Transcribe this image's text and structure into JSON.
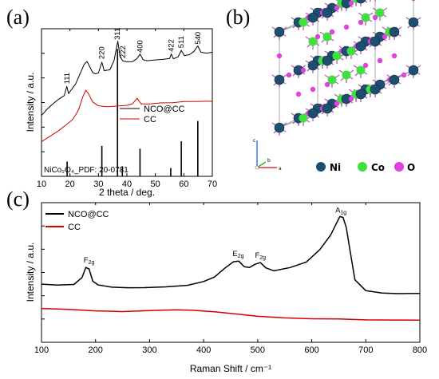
{
  "panel_letters": {
    "a": "(a)",
    "b": "(b)",
    "c": "(c)"
  },
  "colors": {
    "nco": "#000000",
    "cc": "#d40000",
    "ni": "#1f4f6e",
    "co": "#3fe03f",
    "o": "#e040e0",
    "bond": "#b060b0",
    "cell": "#888888"
  },
  "chart_data": [
    {
      "type": "line",
      "panel": "(a)",
      "xlabel": "2 theta / deg.",
      "ylabel": "Intensity / a.u.",
      "xlim": [
        10,
        70
      ],
      "xticks": [
        10,
        20,
        30,
        40,
        50,
        60,
        70
      ],
      "series": [
        {
          "name": "NCO@CC",
          "color": "#000000",
          "x": [
            10,
            12,
            14,
            16,
            18,
            18.9,
            19.5,
            20,
            22,
            24,
            25,
            26,
            27,
            28,
            29,
            30,
            31.2,
            32,
            34,
            35.5,
            36.8,
            37.6,
            38.6,
            40,
            42,
            43.5,
            44.6,
            45.7,
            47,
            50,
            53,
            55,
            55.6,
            56.3,
            58,
            59.1,
            60.2,
            62,
            63.5,
            64.9,
            66,
            68,
            70
          ],
          "y": [
            3.3,
            3.65,
            3.95,
            4.2,
            4.4,
            4.9,
            4.5,
            4.6,
            5.0,
            5.7,
            6.05,
            6.2,
            5.9,
            5.6,
            5.55,
            5.6,
            6.2,
            5.75,
            5.8,
            6.3,
            7.35,
            6.5,
            6.25,
            6.2,
            6.2,
            6.35,
            6.6,
            6.3,
            6.25,
            6.3,
            6.35,
            6.4,
            6.65,
            6.4,
            6.5,
            6.85,
            6.55,
            6.6,
            6.75,
            7.05,
            6.7,
            6.65,
            6.7
          ]
        },
        {
          "name": "CC",
          "color": "#d40000",
          "x": [
            10,
            13,
            16,
            19,
            21,
            23,
            24.5,
            25.6,
            26.5,
            28,
            30,
            33,
            36,
            40,
            42,
            43.6,
            45,
            48,
            52,
            56,
            60,
            65,
            70
          ],
          "y": [
            1.9,
            2.2,
            2.5,
            2.85,
            3.1,
            3.6,
            4.3,
            4.65,
            4.45,
            4.0,
            3.8,
            3.75,
            3.8,
            3.85,
            3.95,
            4.25,
            3.95,
            3.95,
            4.0,
            4.0,
            4.05,
            4.05,
            4.05
          ]
        }
      ],
      "reference": {
        "name": "NiCo₂O₄_PDF: 20-0781",
        "peaks": [
          {
            "x": 19.0,
            "h": 0.8
          },
          {
            "x": 31.2,
            "h": 1.65
          },
          {
            "x": 36.7,
            "h": 6.9
          },
          {
            "x": 38.4,
            "h": 0.55
          },
          {
            "x": 44.6,
            "h": 1.5
          },
          {
            "x": 55.4,
            "h": 0.45
          },
          {
            "x": 59.1,
            "h": 1.9
          },
          {
            "x": 64.9,
            "h": 3.0
          }
        ]
      },
      "annotations": [
        {
          "text": "111",
          "x": 19.0,
          "y": 5.0
        },
        {
          "text": "220",
          "x": 31.2,
          "y": 6.35
        },
        {
          "text": "311",
          "x": 36.7,
          "y": 7.4
        },
        {
          "text": "222",
          "x": 38.6,
          "y": 6.4
        },
        {
          "text": "400",
          "x": 44.6,
          "y": 6.7
        },
        {
          "text": "422",
          "x": 55.6,
          "y": 6.75
        },
        {
          "text": "511",
          "x": 59.1,
          "y": 6.95
        },
        {
          "text": "540",
          "x": 64.9,
          "y": 7.15
        }
      ],
      "ylim": [
        0,
        8
      ],
      "legend": "right"
    },
    {
      "type": "line",
      "panel": "(c)",
      "xlabel": "Raman Shift / cm⁻¹",
      "ylabel": "Intensity / a.u.",
      "xlim": [
        100,
        800
      ],
      "xticks": [
        100,
        200,
        300,
        400,
        500,
        600,
        700,
        800
      ],
      "series": [
        {
          "name": "NCO@CC",
          "color": "#000000",
          "x": [
            100,
            130,
            160,
            175,
            182,
            188,
            195,
            205,
            230,
            260,
            290,
            330,
            370,
            400,
            420,
            440,
            455,
            465,
            475,
            485,
            495,
            505,
            515,
            530,
            560,
            590,
            615,
            635,
            645,
            652,
            658,
            664,
            670,
            680,
            700,
            730,
            760,
            800
          ],
          "y": [
            3.75,
            3.7,
            3.75,
            4.2,
            4.85,
            4.75,
            3.95,
            3.7,
            3.55,
            3.5,
            3.5,
            3.55,
            3.65,
            3.9,
            4.2,
            4.8,
            5.2,
            5.25,
            4.9,
            4.85,
            5.05,
            5.15,
            4.8,
            4.6,
            4.8,
            5.15,
            5.95,
            6.9,
            7.6,
            8.1,
            8.05,
            7.4,
            6.1,
            4.05,
            3.35,
            3.2,
            3.15,
            3.15
          ]
        },
        {
          "name": "CC",
          "color": "#d40000",
          "x": [
            100,
            150,
            200,
            250,
            300,
            350,
            380,
            420,
            460,
            500,
            550,
            600,
            650,
            700,
            750,
            800
          ],
          "y": [
            2.2,
            2.15,
            2.05,
            2.0,
            2.05,
            2.1,
            2.05,
            1.95,
            1.8,
            1.65,
            1.55,
            1.5,
            1.5,
            1.45,
            1.45,
            1.45
          ]
        }
      ],
      "annotations": [
        {
          "text": "F",
          "sub": "2g",
          "x": 188,
          "y": 5.15
        },
        {
          "text": "E",
          "sub": "2g",
          "x": 464,
          "y": 5.55
        },
        {
          "text": "F",
          "sub": "2g",
          "x": 505,
          "y": 5.45
        },
        {
          "text": "A",
          "sub": "1g",
          "x": 654,
          "y": 8.35
        }
      ],
      "ylim": [
        0,
        9
      ],
      "legend": "top-left"
    }
  ],
  "structure_legend": [
    {
      "label": "Ni",
      "color_key": "ni"
    },
    {
      "label": "Co",
      "color_key": "co"
    },
    {
      "label": "O",
      "color_key": "o"
    }
  ],
  "structure_axes": {
    "c": "c",
    "b": "b",
    "a": "a"
  }
}
